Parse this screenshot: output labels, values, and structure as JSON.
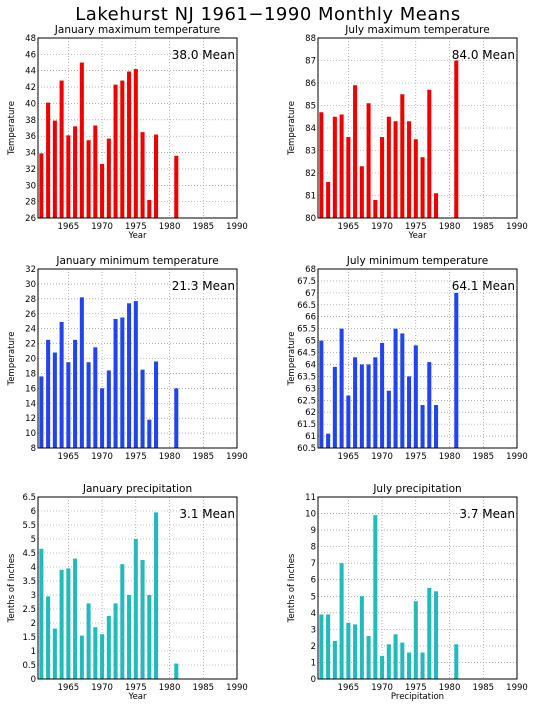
{
  "page_title": "Lakehurst NJ   1961−1990 Monthly Means",
  "chart_data": [
    {
      "type": "bar",
      "title": "January maximum temperature",
      "annotation": "38.0 Mean",
      "xlabel": "Year",
      "ylabel": "Temperature",
      "color": "#ee0000",
      "xlim": [
        1960.5,
        1990
      ],
      "ylim": [
        26,
        48
      ],
      "yticks": [
        "26",
        "28",
        "30",
        "32",
        "34",
        "36",
        "38",
        "40",
        "42",
        "44",
        "46",
        "48"
      ],
      "xticks": [
        1965,
        1970,
        1975,
        1980,
        1985,
        1990
      ],
      "x": [
        1961,
        1962,
        1963,
        1964,
        1965,
        1966,
        1967,
        1968,
        1969,
        1970,
        1971,
        1972,
        1973,
        1974,
        1975,
        1976,
        1977,
        1978,
        1981
      ],
      "values": [
        33.9,
        40.1,
        37.9,
        42.8,
        36.1,
        37.2,
        45.0,
        35.5,
        37.3,
        32.6,
        35.7,
        42.3,
        42.8,
        43.9,
        44.2,
        36.5,
        28.2,
        36.2,
        33.6
      ]
    },
    {
      "type": "bar",
      "title": "July maximum temperature",
      "annotation": "84.0 Mean",
      "xlabel": "Year",
      "ylabel": "Temperature",
      "color": "#ee0000",
      "xlim": [
        1960.5,
        1990
      ],
      "ylim": [
        80,
        88
      ],
      "yticks": [
        "80",
        "81",
        "82",
        "83",
        "84",
        "85",
        "86",
        "87",
        "88"
      ],
      "xticks": [
        1965,
        1970,
        1975,
        1980,
        1985,
        1990
      ],
      "x": [
        1961,
        1962,
        1963,
        1964,
        1965,
        1966,
        1967,
        1968,
        1969,
        1970,
        1971,
        1972,
        1973,
        1974,
        1975,
        1976,
        1977,
        1978,
        1981
      ],
      "values": [
        84.7,
        81.6,
        84.5,
        84.6,
        83.6,
        85.9,
        82.3,
        85.1,
        80.8,
        83.6,
        84.5,
        84.3,
        85.5,
        84.3,
        83.5,
        82.7,
        85.7,
        81.1,
        87.0
      ]
    },
    {
      "type": "bar",
      "title": "January minimum temperature",
      "annotation": "21.3 Mean",
      "xlabel": "",
      "ylabel": "Temperature",
      "color": "#2244ee",
      "xlim": [
        1960.5,
        1990
      ],
      "ylim": [
        8,
        32
      ],
      "yticks": [
        "8",
        "10",
        "12",
        "14",
        "16",
        "18",
        "20",
        "22",
        "24",
        "26",
        "28",
        "30",
        "32"
      ],
      "xticks": [
        1965,
        1970,
        1975,
        1980,
        1985,
        1990
      ],
      "x": [
        1961,
        1962,
        1963,
        1964,
        1965,
        1966,
        1967,
        1968,
        1969,
        1970,
        1971,
        1972,
        1973,
        1974,
        1975,
        1976,
        1977,
        1978,
        1981
      ],
      "values": [
        17.6,
        22.5,
        20.8,
        24.9,
        19.5,
        22.5,
        28.2,
        19.5,
        21.5,
        16.0,
        18.4,
        25.3,
        25.5,
        27.4,
        27.7,
        18.5,
        11.8,
        19.6,
        16.0
      ]
    },
    {
      "type": "bar",
      "title": "July minimum temperature",
      "annotation": "64.1 Mean",
      "xlabel": "",
      "ylabel": "Temperature",
      "color": "#2244ee",
      "xlim": [
        1960.5,
        1990
      ],
      "ylim": [
        60.5,
        68
      ],
      "yticks": [
        "60.5",
        "61",
        "61.5",
        "62",
        "62.5",
        "63",
        "63.5",
        "64",
        "64.5",
        "65",
        "65.5",
        "66",
        "66.5",
        "67",
        "67.5",
        "68"
      ],
      "xticks": [
        1965,
        1970,
        1975,
        1980,
        1985,
        1990
      ],
      "x": [
        1961,
        1962,
        1963,
        1964,
        1965,
        1966,
        1967,
        1968,
        1969,
        1970,
        1971,
        1972,
        1973,
        1974,
        1975,
        1976,
        1977,
        1978,
        1981
      ],
      "values": [
        65.0,
        61.1,
        63.9,
        65.5,
        62.7,
        64.3,
        64.0,
        64.0,
        64.3,
        64.9,
        62.9,
        65.5,
        65.3,
        63.5,
        64.8,
        62.3,
        64.1,
        62.3,
        67.0
      ]
    },
    {
      "type": "bar",
      "title": "January precipitation",
      "annotation": "3.1 Mean",
      "xlabel": "Year",
      "ylabel": "Tenths of Inches",
      "color": "#22bbbb",
      "xlim": [
        1960.5,
        1990
      ],
      "ylim": [
        0,
        6.5
      ],
      "yticks": [
        "0",
        "0.5",
        "1",
        "1.5",
        "2",
        "2.5",
        "3",
        "3.5",
        "4",
        "4.5",
        "5",
        "5.5",
        "6",
        "6.5"
      ],
      "xticks": [
        1965,
        1970,
        1975,
        1980,
        1985,
        1990
      ],
      "x": [
        1961,
        1962,
        1963,
        1964,
        1965,
        1966,
        1967,
        1968,
        1969,
        1970,
        1971,
        1972,
        1973,
        1974,
        1975,
        1976,
        1977,
        1978,
        1981
      ],
      "values": [
        4.65,
        2.95,
        1.8,
        3.9,
        3.95,
        4.3,
        1.55,
        2.7,
        1.85,
        1.6,
        2.25,
        2.7,
        4.1,
        3.0,
        5.0,
        4.25,
        3.0,
        5.95,
        0.55
      ]
    },
    {
      "type": "bar",
      "title": "July precipitation",
      "annotation": "3.7 Mean",
      "xlabel": "Precipitation",
      "ylabel": "Tenths of Inches",
      "color": "#22bbbb",
      "xlim": [
        1960.5,
        1990
      ],
      "ylim": [
        0,
        11
      ],
      "yticks": [
        "0",
        "1",
        "2",
        "3",
        "4",
        "5",
        "6",
        "7",
        "8",
        "9",
        "10",
        "11"
      ],
      "xticks": [
        1965,
        1970,
        1975,
        1980,
        1985,
        1990
      ],
      "x": [
        1961,
        1962,
        1963,
        1964,
        1965,
        1966,
        1967,
        1968,
        1969,
        1970,
        1971,
        1972,
        1973,
        1974,
        1975,
        1976,
        1977,
        1978,
        1981
      ],
      "values": [
        3.9,
        3.9,
        2.3,
        7.0,
        3.4,
        3.3,
        5.0,
        2.6,
        9.9,
        1.4,
        2.1,
        2.7,
        2.2,
        1.6,
        4.7,
        1.6,
        5.5,
        5.3,
        2.1
      ]
    }
  ]
}
